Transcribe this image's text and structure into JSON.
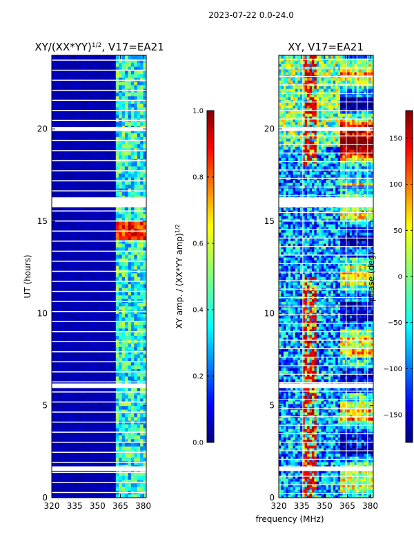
{
  "figure": {
    "suptitle": "2023-07-22 0.0-24.0",
    "shared_xlabel": "frequency (MHz)"
  },
  "chart_data": [
    {
      "type": "heatmap",
      "title_main": "XY/(XX*YY)",
      "title_sup": "1/2",
      "title_tail": ", V17=EA21",
      "xlabel": "frequency (MHz)",
      "ylabel": "UT (hours)",
      "xlim": [
        320,
        382
      ],
      "ylim": [
        0,
        24
      ],
      "xticks": [
        320,
        335,
        350,
        365,
        380
      ],
      "yticks": [
        0,
        5,
        10,
        15,
        20
      ],
      "colorbar": {
        "label_main": "XY amp. / (XX*YY amp)",
        "label_sup": "1/2",
        "range": [
          0.0,
          1.0
        ],
        "ticks": [
          "0.0",
          "0.2",
          "0.4",
          "0.6",
          "0.8",
          "1.0"
        ],
        "tick_values": [
          0.0,
          0.2,
          0.4,
          0.6,
          0.8,
          1.0
        ],
        "colormap": "jet"
      },
      "active_channels_mhz": [
        364,
        366,
        369,
        372,
        375,
        378,
        381
      ],
      "gap_bands_hours": [
        [
          1.45,
          1.7
        ],
        [
          5.95,
          6.2
        ],
        [
          15.75,
          16.3
        ],
        [
          19.9,
          20.1
        ]
      ],
      "bright_band_hours": [
        14.0,
        14.9
      ]
    },
    {
      "type": "heatmap",
      "title": "XY, V17=EA21",
      "xlim": [
        320,
        382
      ],
      "ylim": [
        0,
        24
      ],
      "xticks": [
        320,
        335,
        350,
        365,
        380
      ],
      "yticks": [
        0,
        5,
        10,
        15,
        20
      ],
      "colorbar": {
        "label": "phase (deg)",
        "range": [
          -180,
          180
        ],
        "ticks": [
          "−150",
          "−100",
          "−50",
          "0",
          "50",
          "100",
          "150"
        ],
        "tick_values": [
          -150,
          -100,
          -50,
          0,
          50,
          100,
          150
        ],
        "colormap": "jet"
      },
      "gap_bands_hours": [
        [
          1.45,
          1.7
        ],
        [
          5.95,
          6.2
        ],
        [
          15.75,
          16.3
        ],
        [
          19.9,
          20.1
        ]
      ]
    }
  ]
}
